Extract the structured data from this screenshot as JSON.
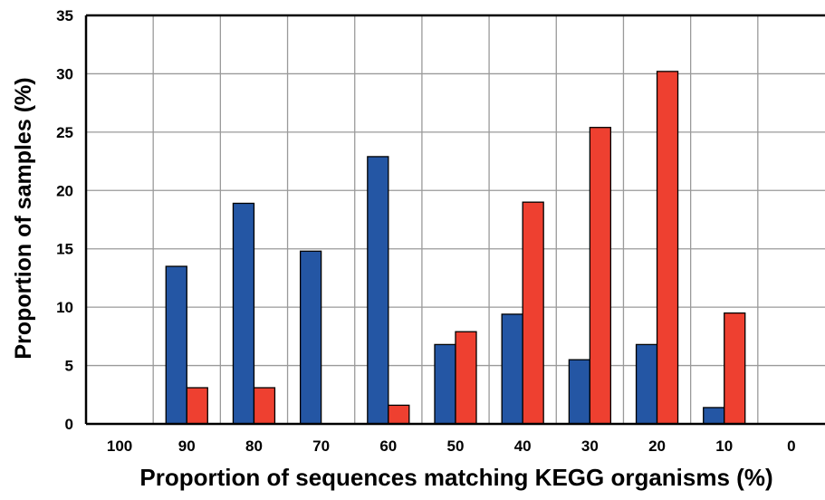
{
  "chart_data": {
    "type": "bar",
    "title": "",
    "xlabel": "Proportion of sequences matching KEGG organisms (%)",
    "ylabel": "Proportion of samples (%)",
    "categories": [
      "100",
      "90",
      "80",
      "70",
      "60",
      "50",
      "40",
      "30",
      "20",
      "10",
      "0"
    ],
    "ylim": [
      0,
      35
    ],
    "yticks": [
      "0",
      "5",
      "10",
      "15",
      "20",
      "25",
      "30",
      "35"
    ],
    "grid": true,
    "legend": "none",
    "series": [
      {
        "color": "#2456a4",
        "values": [
          0,
          13.5,
          18.9,
          14.8,
          22.9,
          6.8,
          9.4,
          5.5,
          6.8,
          1.4,
          0
        ]
      },
      {
        "color": "#ee4030",
        "values": [
          0,
          3.1,
          3.1,
          0,
          1.6,
          7.9,
          19.0,
          25.4,
          30.2,
          9.5,
          0
        ]
      }
    ]
  }
}
